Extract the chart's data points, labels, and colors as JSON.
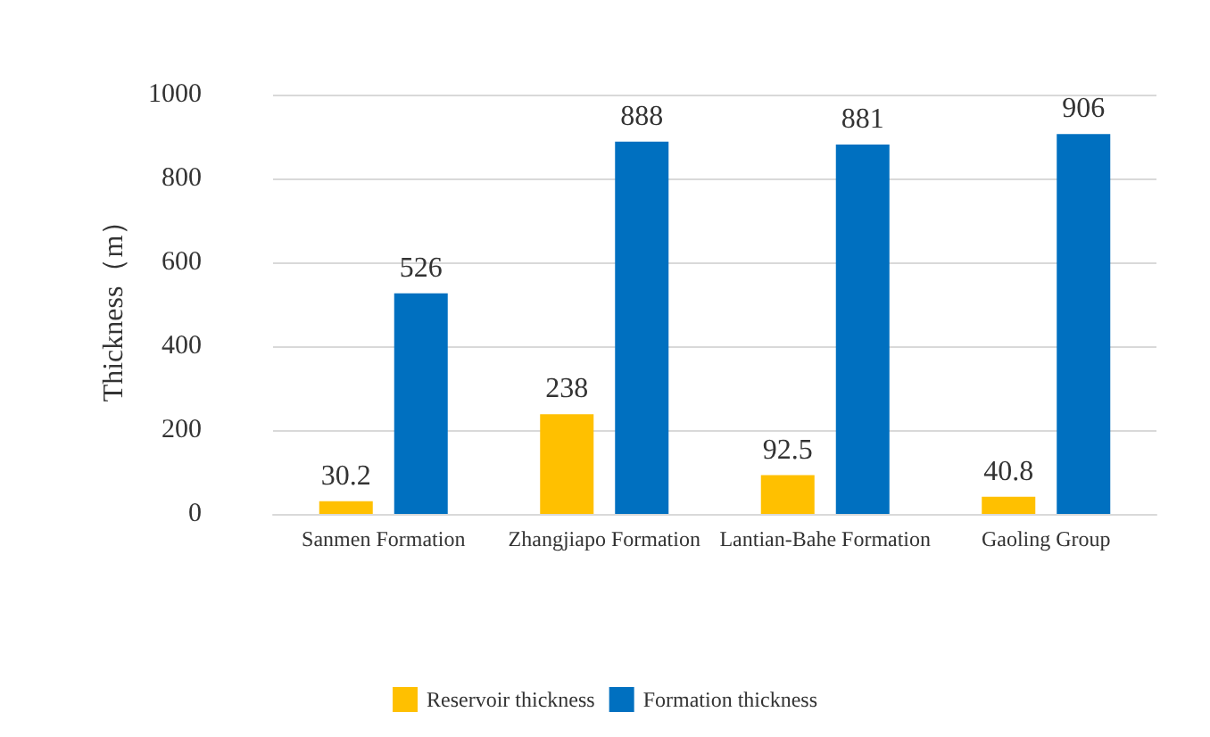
{
  "chart_data": {
    "type": "bar",
    "ylabel": "Thickness（m）",
    "categories": [
      "Sanmen Formation",
      "Zhangjiapo Formation",
      "Lantian-Bahe Formation",
      "Gaoling Group"
    ],
    "series": [
      {
        "name": "Reservoir thickness",
        "color": "#ffc000",
        "values": [
          30.2,
          238,
          92.5,
          40.8
        ]
      },
      {
        "name": "Formation thickness",
        "color": "#0070c0",
        "values": [
          526,
          888,
          881,
          906
        ]
      }
    ],
    "ylim": [
      0,
      1000
    ],
    "yticks": [
      0,
      200,
      400,
      600,
      800,
      1000
    ],
    "grid": "y",
    "legend": "bottom",
    "data_labels": true
  }
}
